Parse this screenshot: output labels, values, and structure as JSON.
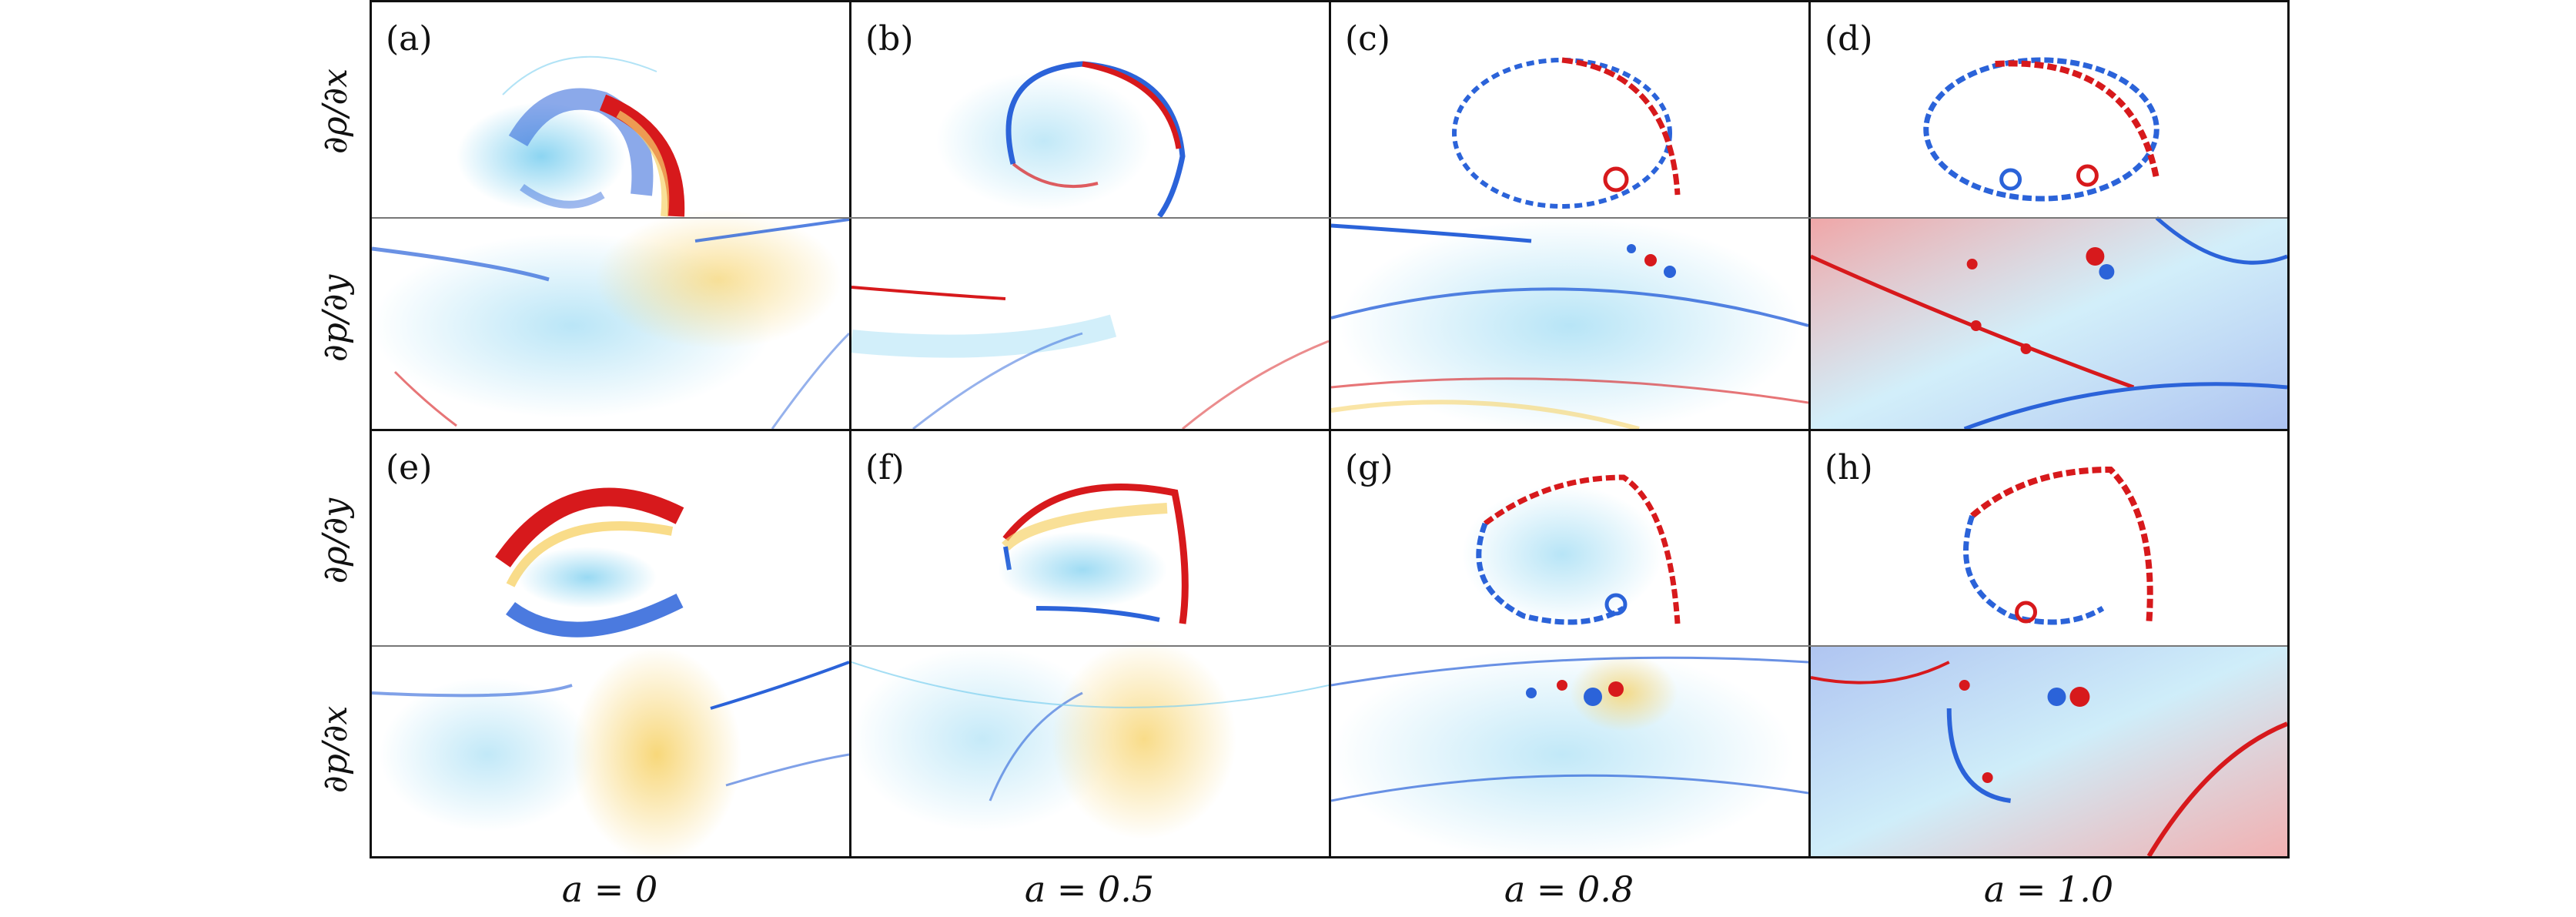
{
  "figure": {
    "panel_labels": [
      "(a)",
      "(b)",
      "(c)",
      "(d)",
      "(e)",
      "(f)",
      "(g)",
      "(h)"
    ],
    "row_labels": [
      "∂ρ/∂x",
      "∂p/∂y",
      "∂ρ/∂y",
      "∂p/∂x"
    ],
    "column_labels": [
      "a = 0",
      "a = 0.5",
      "a = 0.8",
      "a = 1.0"
    ],
    "colors": {
      "positive": "#d7191c",
      "negative": "#2b63d9",
      "weak_positive": "#f7d36b",
      "weak_negative": "#7fd0f0",
      "background": "#ffffff",
      "frame": "#111111"
    }
  }
}
